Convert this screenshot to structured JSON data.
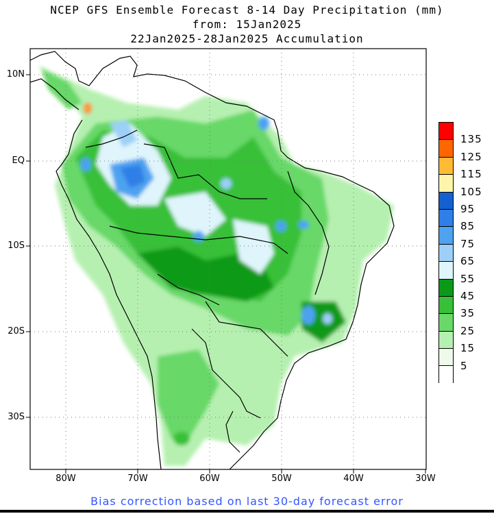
{
  "title": {
    "line1": "NCEP GFS Ensemble Forecast 8-14 Day Precipitation (mm)",
    "line2": "from: 15Jan2025",
    "line3": "22Jan2025-28Jan2025 Accumulation"
  },
  "lat_labels": [
    "10N",
    "EQ",
    "10S",
    "20S",
    "30S"
  ],
  "lon_labels": [
    "80W",
    "70W",
    "60W",
    "50W",
    "40W",
    "30W"
  ],
  "legend": {
    "labels": [
      "135",
      "125",
      "115",
      "105",
      "95",
      "85",
      "75",
      "65",
      "55",
      "45",
      "35",
      "25",
      "15",
      "5"
    ],
    "colors": [
      "#ff0000",
      "#ff6600",
      "#ffbb33",
      "#fff5aa",
      "#1460d0",
      "#2e7fe8",
      "#4ea2f0",
      "#9cd0f8",
      "#dff5fb",
      "#0a9a18",
      "#38c038",
      "#68d868",
      "#b6f0b0",
      "#eefbea",
      "#ffffff"
    ]
  },
  "footer": "Bias correction based on last 30-day forecast error"
}
